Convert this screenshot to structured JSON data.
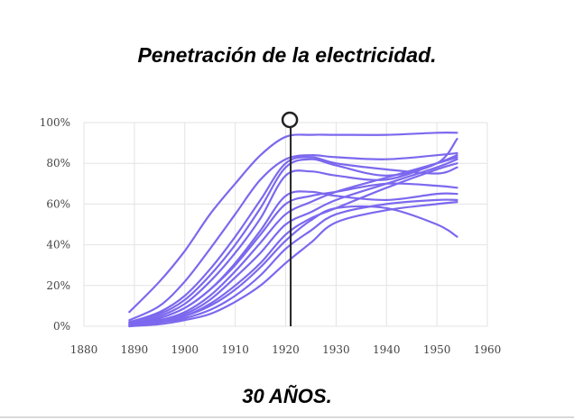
{
  "slide": {
    "title": "Penetración de la electricidad.",
    "caption": "30 AÑOS."
  },
  "chart_data": {
    "type": "line",
    "title": "",
    "xlabel": "",
    "ylabel": "",
    "xlim": [
      1880,
      1960
    ],
    "ylim": [
      0,
      100
    ],
    "x_ticks": [
      "1880",
      "1890",
      "1900",
      "1910",
      "1920",
      "1930",
      "1940",
      "1950",
      "1960"
    ],
    "y_ticks": [
      "0%",
      "20%",
      "40%",
      "60%",
      "80%",
      "100%"
    ],
    "grid": true,
    "legend": "none",
    "line_color": "#7b68ee",
    "marker": {
      "x": 1921,
      "color": "#222222"
    },
    "series": [
      {
        "x": [
          1889,
          1895,
          1900,
          1905,
          1910,
          1915,
          1920,
          1925,
          1930,
          1940,
          1950,
          1954
        ],
        "values": [
          7,
          22,
          37,
          55,
          70,
          84,
          93,
          94,
          94,
          94,
          95,
          95
        ]
      },
      {
        "x": [
          1889,
          1895,
          1900,
          1905,
          1910,
          1915,
          1920,
          1925,
          1930,
          1940,
          1950,
          1954
        ],
        "values": [
          3,
          10,
          22,
          38,
          55,
          72,
          82,
          84,
          83,
          82,
          84,
          85
        ]
      },
      {
        "x": [
          1889,
          1895,
          1900,
          1905,
          1910,
          1915,
          1920,
          1925,
          1930,
          1940,
          1950,
          1954
        ],
        "values": [
          2,
          7,
          15,
          28,
          44,
          62,
          80,
          83,
          80,
          77,
          75,
          78
        ]
      },
      {
        "x": [
          1889,
          1895,
          1900,
          1905,
          1910,
          1915,
          1920,
          1925,
          1930,
          1940,
          1950,
          1954
        ],
        "values": [
          2,
          6,
          13,
          25,
          40,
          58,
          78,
          82,
          79,
          74,
          80,
          92
        ]
      },
      {
        "x": [
          1889,
          1895,
          1900,
          1905,
          1910,
          1915,
          1920,
          1925,
          1930,
          1940,
          1950,
          1954
        ],
        "values": [
          1,
          5,
          11,
          22,
          36,
          53,
          74,
          76,
          74,
          72,
          80,
          84
        ]
      },
      {
        "x": [
          1889,
          1895,
          1900,
          1905,
          1910,
          1915,
          1920,
          1925,
          1930,
          1940,
          1950,
          1954
        ],
        "values": [
          1,
          4,
          9,
          18,
          31,
          47,
          64,
          66,
          64,
          62,
          65,
          65
        ]
      },
      {
        "x": [
          1889,
          1895,
          1900,
          1905,
          1910,
          1915,
          1920,
          1925,
          1930,
          1940,
          1950,
          1954
        ],
        "values": [
          1,
          4,
          9,
          18,
          30,
          45,
          60,
          64,
          66,
          70,
          69,
          68
        ]
      },
      {
        "x": [
          1889,
          1895,
          1900,
          1905,
          1910,
          1915,
          1920,
          1925,
          1930,
          1940,
          1950,
          1954
        ],
        "values": [
          1,
          3,
          7,
          15,
          27,
          41,
          55,
          61,
          66,
          73,
          80,
          83
        ]
      },
      {
        "x": [
          1889,
          1895,
          1900,
          1905,
          1910,
          1915,
          1920,
          1925,
          1930,
          1940,
          1950,
          1954
        ],
        "values": [
          1,
          3,
          6,
          13,
          24,
          36,
          50,
          56,
          62,
          70,
          78,
          82
        ]
      },
      {
        "x": [
          1889,
          1895,
          1900,
          1905,
          1910,
          1915,
          1920,
          1925,
          1930,
          1940,
          1950,
          1954
        ],
        "values": [
          1,
          2,
          5,
          11,
          20,
          31,
          45,
          53,
          58,
          68,
          77,
          80
        ]
      },
      {
        "x": [
          1889,
          1895,
          1900,
          1905,
          1910,
          1915,
          1920,
          1925,
          1930,
          1940,
          1950,
          1954
        ],
        "values": [
          0,
          2,
          5,
          10,
          18,
          29,
          42,
          52,
          58,
          58,
          50,
          44
        ]
      },
      {
        "x": [
          1889,
          1895,
          1900,
          1905,
          1910,
          1915,
          1920,
          1925,
          1930,
          1940,
          1950,
          1954
        ],
        "values": [
          0,
          2,
          4,
          8,
          15,
          25,
          38,
          47,
          55,
          60,
          62,
          62
        ]
      },
      {
        "x": [
          1889,
          1895,
          1900,
          1905,
          1910,
          1915,
          1920,
          1925,
          1930,
          1940,
          1950,
          1954
        ],
        "values": [
          0,
          1,
          3,
          6,
          12,
          20,
          31,
          41,
          51,
          57,
          60,
          61
        ]
      }
    ]
  }
}
